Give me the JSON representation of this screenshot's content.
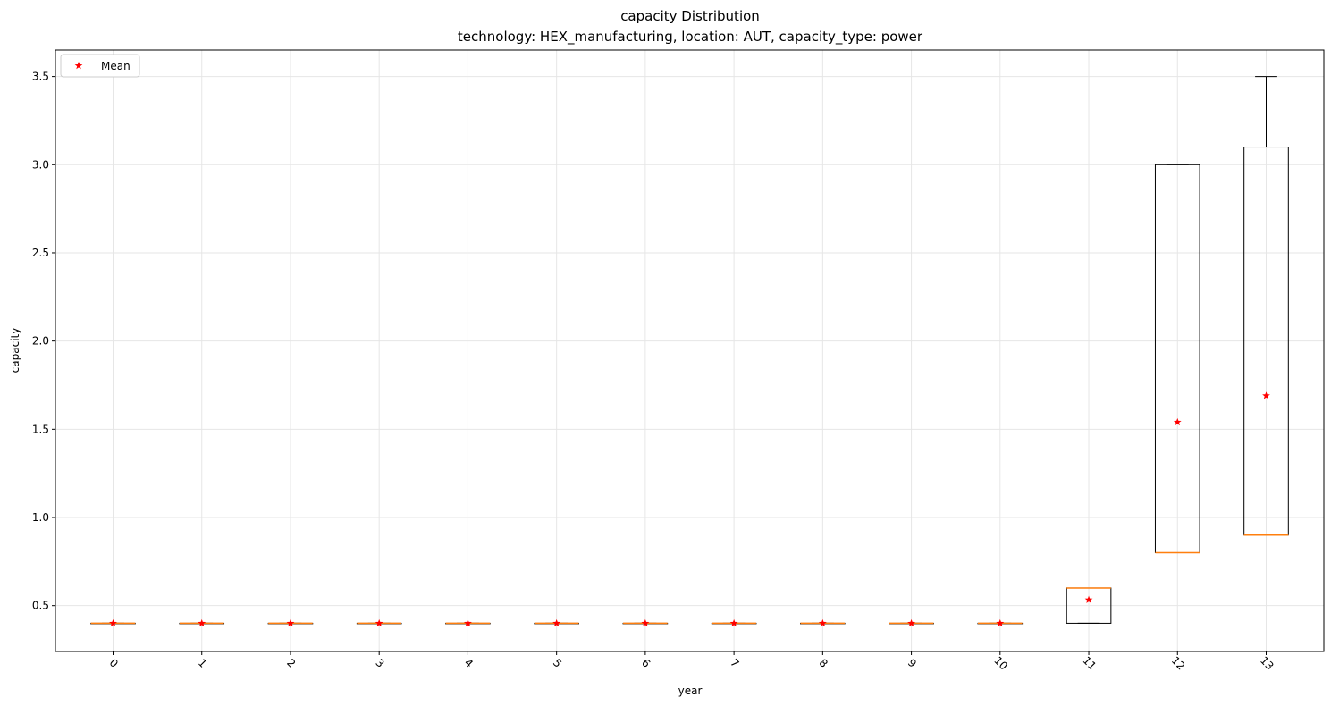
{
  "chart_data": {
    "type": "box",
    "title": "capacity Distribution",
    "subtitle": "technology: HEX_manufacturing, location: AUT, capacity_type: power",
    "xlabel": "year",
    "ylabel": "capacity",
    "ylim": [
      0.24,
      3.65
    ],
    "yticks": [
      "0.5",
      "1.0",
      "1.5",
      "2.0",
      "2.5",
      "3.0",
      "3.5"
    ],
    "grid": true,
    "legend": {
      "placement": "top-left",
      "entries": [
        "Mean"
      ]
    },
    "colors": {
      "box": "#000000",
      "median": "#ff7f0e",
      "mean": "#ff0000",
      "grid": "#e6e6e6"
    },
    "boxes": [
      {
        "category": "0",
        "whisker_low": 0.4,
        "q1": 0.4,
        "median": 0.4,
        "q3": 0.4,
        "whisker_high": 0.4,
        "mean": 0.4
      },
      {
        "category": "1",
        "whisker_low": 0.4,
        "q1": 0.4,
        "median": 0.4,
        "q3": 0.4,
        "whisker_high": 0.4,
        "mean": 0.4
      },
      {
        "category": "2",
        "whisker_low": 0.4,
        "q1": 0.4,
        "median": 0.4,
        "q3": 0.4,
        "whisker_high": 0.4,
        "mean": 0.4
      },
      {
        "category": "3",
        "whisker_low": 0.4,
        "q1": 0.4,
        "median": 0.4,
        "q3": 0.4,
        "whisker_high": 0.4,
        "mean": 0.4
      },
      {
        "category": "4",
        "whisker_low": 0.4,
        "q1": 0.4,
        "median": 0.4,
        "q3": 0.4,
        "whisker_high": 0.4,
        "mean": 0.4
      },
      {
        "category": "5",
        "whisker_low": 0.4,
        "q1": 0.4,
        "median": 0.4,
        "q3": 0.4,
        "whisker_high": 0.4,
        "mean": 0.4
      },
      {
        "category": "6",
        "whisker_low": 0.4,
        "q1": 0.4,
        "median": 0.4,
        "q3": 0.4,
        "whisker_high": 0.4,
        "mean": 0.4
      },
      {
        "category": "7",
        "whisker_low": 0.4,
        "q1": 0.4,
        "median": 0.4,
        "q3": 0.4,
        "whisker_high": 0.4,
        "mean": 0.4
      },
      {
        "category": "8",
        "whisker_low": 0.4,
        "q1": 0.4,
        "median": 0.4,
        "q3": 0.4,
        "whisker_high": 0.4,
        "mean": 0.4
      },
      {
        "category": "9",
        "whisker_low": 0.4,
        "q1": 0.4,
        "median": 0.4,
        "q3": 0.4,
        "whisker_high": 0.4,
        "mean": 0.4
      },
      {
        "category": "10",
        "whisker_low": 0.4,
        "q1": 0.4,
        "median": 0.4,
        "q3": 0.4,
        "whisker_high": 0.4,
        "mean": 0.4
      },
      {
        "category": "11",
        "whisker_low": 0.4,
        "q1": 0.4,
        "median": 0.6,
        "q3": 0.6,
        "whisker_high": 0.6,
        "mean": 0.533
      },
      {
        "category": "12",
        "whisker_low": 0.8,
        "q1": 0.8,
        "median": 0.8,
        "q3": 3.0,
        "whisker_high": 3.0,
        "mean": 1.54
      },
      {
        "category": "13",
        "whisker_low": 0.9,
        "q1": 0.9,
        "median": 0.9,
        "q3": 3.1,
        "whisker_high": 3.5,
        "mean": 1.69
      }
    ]
  }
}
